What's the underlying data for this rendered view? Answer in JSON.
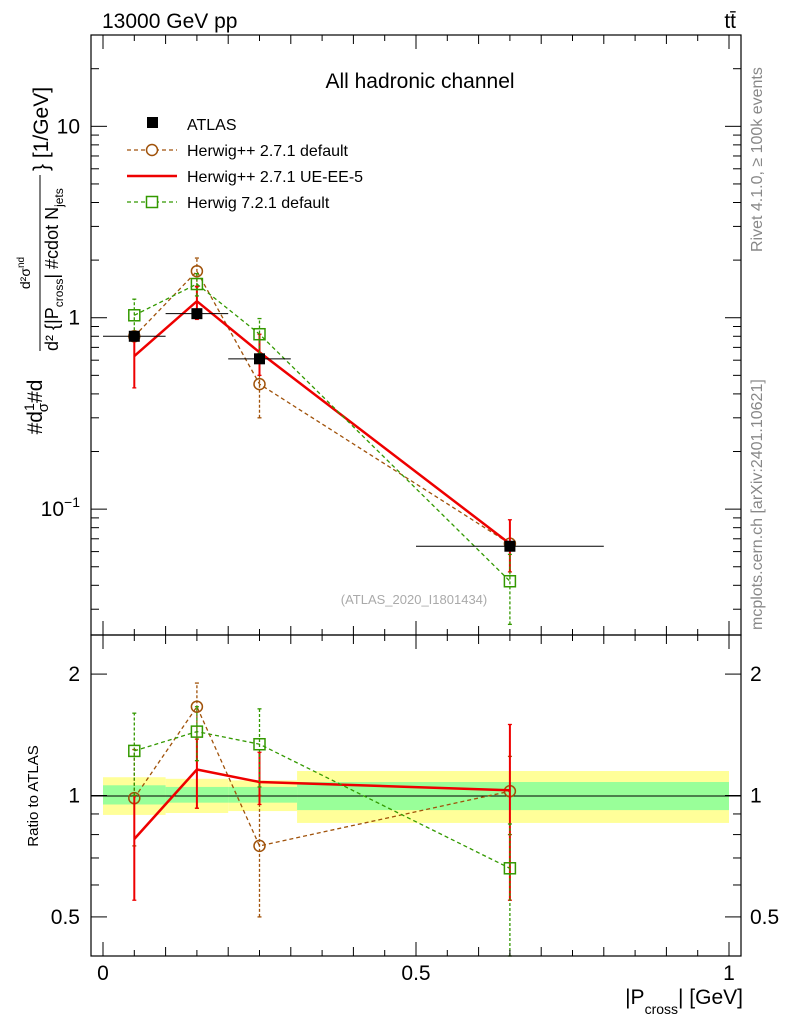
{
  "header": {
    "energy_label": "13000 GeV pp",
    "process_label": "tt̄"
  },
  "side_labels": {
    "rivet": "Rivet 4.1.0, ≥ 100k events",
    "mcplots": "mcplots.cern.ch [arXiv:2401.10621]"
  },
  "chart_data": [
    {
      "type": "line",
      "title": "All hadronic channel",
      "watermark": "(ATLAS_2020_I1801434)",
      "ylabel": "#d1/σ#d d²σ^nd / d²{|P_cross| #cdot N_jets} [1/GeV]",
      "ylabel_parts": {
        "a": "#d",
        "b": "1",
        "c": "σ",
        "d": "#d",
        "e": "d²σ",
        "f": "nd",
        "g": "d² {|P",
        "h": "cross",
        "i": "| #cdot N",
        "j": "jets",
        "k": "} [1/GeV]"
      },
      "yscale": "log",
      "ylim": [
        0.022,
        30
      ],
      "yticks": [
        {
          "v": 0.1,
          "base": "10",
          "exp": "−1"
        },
        {
          "v": 1,
          "base": "1",
          "exp": ""
        },
        {
          "v": 10,
          "base": "10",
          "exp": ""
        }
      ],
      "xlim": [
        0,
        1
      ],
      "legend_position": "top-left",
      "series": [
        {
          "name": "ATLAS",
          "style": "data",
          "color": "#000000",
          "x": [
            0.05,
            0.15,
            0.25,
            0.65
          ],
          "xerr": [
            0.05,
            0.05,
            0.05,
            0.15
          ],
          "y": [
            0.8,
            1.05,
            0.61,
            0.064
          ],
          "yerr": [
            0.0,
            0.0,
            0.0,
            0.0
          ]
        },
        {
          "name": "Herwig++ 2.7.1 default",
          "style": "dashed-circle",
          "color": "#a0520a",
          "x": [
            0.05,
            0.15,
            0.25,
            0.65
          ],
          "y": [
            0.8,
            1.75,
            0.45,
            0.066
          ],
          "ylo": [
            0.8,
            1.45,
            0.3,
            0.066
          ],
          "yhi": [
            0.8,
            2.05,
            0.6,
            0.066
          ]
        },
        {
          "name": "Herwig++ 2.7.1 UE-EE-5",
          "style": "solid",
          "color": "#ee0000",
          "x": [
            0.05,
            0.15,
            0.25,
            0.65
          ],
          "y": [
            0.63,
            1.22,
            0.66,
            0.066
          ],
          "ylo": [
            0.43,
            0.98,
            0.5,
            0.047
          ],
          "yhi": [
            0.83,
            1.46,
            0.82,
            0.088
          ]
        },
        {
          "name": "Herwig 7.2.1 default",
          "style": "dashed-square",
          "color": "#339900",
          "x": [
            0.05,
            0.15,
            0.25,
            0.65
          ],
          "y": [
            1.03,
            1.5,
            0.82,
            0.042
          ],
          "ylo": [
            0.81,
            1.3,
            0.65,
            0.025
          ],
          "yhi": [
            1.25,
            1.7,
            0.99,
            0.058
          ]
        }
      ]
    },
    {
      "type": "line",
      "ylabel": "Ratio to ATLAS",
      "xlabel": "|P_cross| [GeV]",
      "xlabel_parts": {
        "a": "|P",
        "b": "cross",
        "c": "| [GeV]"
      },
      "yscale": "log",
      "ylim": [
        0.4,
        2.5
      ],
      "yticks": [
        {
          "v": 0.5,
          "label": "0.5"
        },
        {
          "v": 1,
          "label": "1"
        },
        {
          "v": 2,
          "label": "2"
        }
      ],
      "xlim": [
        0,
        1
      ],
      "xticks": [
        {
          "v": 0,
          "label": "0"
        },
        {
          "v": 0.5,
          "label": "0.5"
        },
        {
          "v": 1,
          "label": "1"
        }
      ],
      "bands": {
        "outer": [
          {
            "x0": 0,
            "x1": 0.1,
            "lo": 0.895,
            "hi": 1.11
          },
          {
            "x0": 0.1,
            "x1": 0.2,
            "lo": 0.905,
            "hi": 1.1
          },
          {
            "x0": 0.2,
            "x1": 0.31,
            "lo": 0.915,
            "hi": 1.09
          },
          {
            "x0": 0.31,
            "x1": 1.0,
            "lo": 0.855,
            "hi": 1.15
          }
        ],
        "inner": [
          {
            "x0": 0,
            "x1": 0.1,
            "lo": 0.95,
            "hi": 1.06
          },
          {
            "x0": 0.1,
            "x1": 0.2,
            "lo": 0.96,
            "hi": 1.05
          },
          {
            "x0": 0.2,
            "x1": 0.31,
            "lo": 0.96,
            "hi": 1.05
          },
          {
            "x0": 0.31,
            "x1": 1.0,
            "lo": 0.92,
            "hi": 1.08
          }
        ]
      },
      "series": [
        {
          "name": "Herwig++ 2.7.1 default",
          "style": "dashed-circle",
          "color": "#a0520a",
          "x": [
            0.05,
            0.15,
            0.25,
            0.65
          ],
          "y": [
            0.985,
            1.66,
            0.75,
            1.025
          ],
          "ylo": [
            0.75,
            0.93,
            0.5,
            0.8
          ],
          "yhi": [
            1.3,
            1.9,
            1.0,
            1.25
          ]
        },
        {
          "name": "Herwig++ 2.7.1 UE-EE-5",
          "style": "solid",
          "color": "#ee0000",
          "x": [
            0.05,
            0.15,
            0.25,
            0.65
          ],
          "y": [
            0.78,
            1.16,
            1.08,
            1.03
          ],
          "ylo": [
            0.55,
            0.93,
            0.95,
            0.55
          ],
          "yhi": [
            1.0,
            1.38,
            1.28,
            1.5
          ]
        },
        {
          "name": "Herwig 7.2.1 default",
          "style": "dashed-square",
          "color": "#339900",
          "x": [
            0.05,
            0.15,
            0.25,
            0.65
          ],
          "y": [
            1.29,
            1.44,
            1.34,
            0.66
          ],
          "ylo": [
            1.0,
            1.22,
            1.05,
            0.4
          ],
          "yhi": [
            1.6,
            1.66,
            1.64,
            0.85
          ]
        }
      ]
    }
  ]
}
